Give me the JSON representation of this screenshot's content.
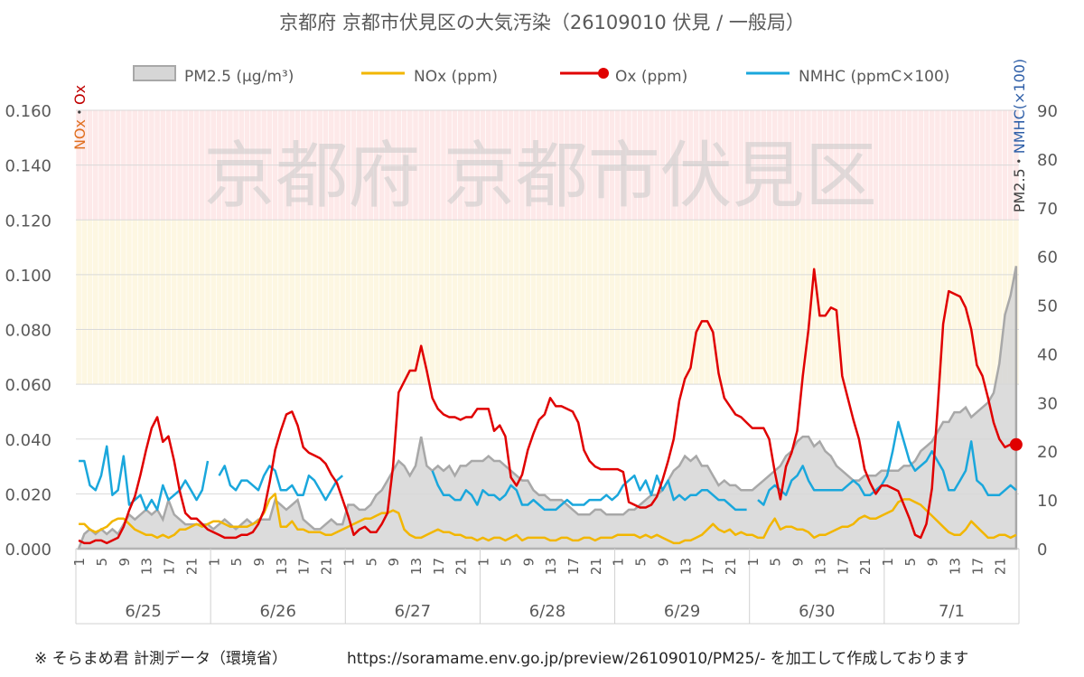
{
  "title": "京都府 京都市伏見区の大気汚染（26109010 伏見 / 一般局）",
  "watermark": "京都府 京都市伏見区",
  "footer_note": "※ そらまめ君 計測データ（環境省）",
  "footer_url": "https://soramame.env.go.jp/preview/26109010/PM25/- を加工して作成しております",
  "left_axis_title": {
    "part1": "NOx",
    "sep": "・",
    "part2": "Ox"
  },
  "right_axis_title": {
    "part1": "PM2.5",
    "sep": "・",
    "part2": "NMHC(×100)"
  },
  "colors": {
    "pm25_fill": "#d6d6d6",
    "pm25_line": "#a8a8a8",
    "nox": "#f2b600",
    "ox": "#e00000",
    "nmhc": "#1aa7dc",
    "band_red": "#fde9e9",
    "band_yellow": "#fdf7e2",
    "nox_label": "#e07020",
    "ox_label": "#c00000",
    "pm_label": "#404040",
    "nmhc_label": "#2f5fa8"
  },
  "chart_data": {
    "type": "line",
    "hours_per_day": 24,
    "x_tick_labels": [
      "1",
      "5",
      "9",
      "13",
      "17",
      "21"
    ],
    "days": [
      "6/25",
      "6/26",
      "6/27",
      "6/28",
      "6/29",
      "6/30",
      "7/1"
    ],
    "y_left": {
      "min": 0,
      "max": 0.16,
      "ticks": [
        "0.000",
        "0.020",
        "0.040",
        "0.060",
        "0.080",
        "0.100",
        "0.120",
        "0.140",
        "0.160"
      ]
    },
    "y_right": {
      "min": 0,
      "max": 90,
      "ticks": [
        "0",
        "10",
        "20",
        "30",
        "40",
        "50",
        "60",
        "70",
        "80",
        "90"
      ]
    },
    "bands": [
      {
        "from": 0.12,
        "to": 0.16,
        "color": "red"
      },
      {
        "from": 0.06,
        "to": 0.12,
        "color": "yellow"
      }
    ],
    "series": [
      {
        "name": "PM2.5 (μg/m³)",
        "axis": "right",
        "style": "area",
        "values": [
          0,
          3,
          4,
          3,
          4,
          3,
          4,
          3,
          5,
          7,
          6,
          7,
          8,
          7,
          8,
          6,
          10,
          7,
          6,
          5,
          5,
          5,
          5,
          5,
          4,
          5,
          6,
          5,
          4,
          5,
          6,
          5,
          6,
          6,
          6,
          10,
          9,
          8,
          9,
          10,
          6,
          5,
          4,
          4,
          5,
          6,
          5,
          5,
          9,
          9,
          8,
          8,
          9,
          11,
          12,
          14,
          16,
          18,
          17,
          15,
          17,
          23,
          17,
          16,
          17,
          16,
          17,
          15,
          17,
          17,
          18,
          18,
          18,
          19,
          18,
          18,
          17,
          16,
          15,
          14,
          14,
          12,
          11,
          11,
          10,
          10,
          10,
          9,
          8,
          7,
          7,
          7,
          8,
          8,
          7,
          7,
          7,
          7,
          8,
          8,
          9,
          10,
          11,
          11,
          12,
          14,
          16,
          17,
          19,
          18,
          19,
          17,
          17,
          15,
          13,
          14,
          13,
          13,
          12,
          12,
          12,
          13,
          14,
          15,
          16,
          17,
          19,
          20,
          22,
          23,
          23,
          21,
          22,
          20,
          19,
          17,
          16,
          15,
          14,
          14,
          15,
          15,
          15,
          16,
          16,
          16,
          16,
          17,
          17,
          18,
          20,
          21,
          22,
          24,
          26,
          26,
          28,
          28,
          29,
          27,
          28,
          29,
          30,
          32,
          38,
          48,
          52,
          58
        ]
      },
      {
        "name": "NOx (ppm)",
        "axis": "left",
        "style": "line",
        "values": [
          0.009,
          0.009,
          0.007,
          0.006,
          0.007,
          0.008,
          0.01,
          0.011,
          0.011,
          0.009,
          0.007,
          0.006,
          0.005,
          0.005,
          0.004,
          0.005,
          0.004,
          0.005,
          0.007,
          0.007,
          0.008,
          0.009,
          0.008,
          0.009,
          0.01,
          0.01,
          0.009,
          0.008,
          0.008,
          0.008,
          0.008,
          0.009,
          0.01,
          0.013,
          0.018,
          0.02,
          0.008,
          0.008,
          0.01,
          0.007,
          0.007,
          0.006,
          0.006,
          0.006,
          0.005,
          0.005,
          0.006,
          0.007,
          0.008,
          0.009,
          0.01,
          0.011,
          0.011,
          0.012,
          0.013,
          0.013,
          0.014,
          0.013,
          0.007,
          0.005,
          0.004,
          0.004,
          0.005,
          0.006,
          0.007,
          0.006,
          0.006,
          0.005,
          0.005,
          0.004,
          0.004,
          0.003,
          0.004,
          0.003,
          0.004,
          0.004,
          0.003,
          0.004,
          0.005,
          0.003,
          0.004,
          0.004,
          0.004,
          0.004,
          0.003,
          0.003,
          0.004,
          0.004,
          0.003,
          0.003,
          0.004,
          0.004,
          0.003,
          0.004,
          0.004,
          0.004,
          0.005,
          0.005,
          0.005,
          0.005,
          0.004,
          0.005,
          0.004,
          0.005,
          0.004,
          0.003,
          0.002,
          0.002,
          0.003,
          0.003,
          0.004,
          0.005,
          0.007,
          0.009,
          0.007,
          0.006,
          0.007,
          0.005,
          0.006,
          0.005,
          0.005,
          0.004,
          0.004,
          0.008,
          0.011,
          0.007,
          0.008,
          0.008,
          0.007,
          0.007,
          0.006,
          0.004,
          0.005,
          0.005,
          0.006,
          0.007,
          0.008,
          0.008,
          0.009,
          0.011,
          0.012,
          0.011,
          0.011,
          0.012,
          0.013,
          0.014,
          0.017,
          0.018,
          0.018,
          0.017,
          0.016,
          0.014,
          0.012,
          0.01,
          0.008,
          0.006,
          0.005,
          0.005,
          0.007,
          0.01,
          0.008,
          0.006,
          0.004,
          0.004,
          0.005,
          0.005,
          0.004,
          0.005
        ]
      },
      {
        "name": "Ox (ppm)",
        "axis": "left",
        "style": "line-marker-last",
        "values": [
          0.003,
          0.002,
          0.002,
          0.003,
          0.003,
          0.002,
          0.003,
          0.004,
          0.008,
          0.014,
          0.019,
          0.027,
          0.036,
          0.044,
          0.048,
          0.039,
          0.041,
          0.032,
          0.021,
          0.013,
          0.011,
          0.011,
          0.009,
          0.007,
          0.006,
          0.005,
          0.004,
          0.004,
          0.004,
          0.005,
          0.005,
          0.006,
          0.009,
          0.014,
          0.024,
          0.036,
          0.043,
          0.049,
          0.05,
          0.045,
          0.037,
          0.035,
          0.034,
          0.033,
          0.031,
          0.027,
          0.024,
          0.018,
          0.012,
          0.005,
          0.007,
          0.008,
          0.006,
          0.006,
          0.009,
          0.013,
          0.03,
          0.057,
          0.061,
          0.065,
          0.065,
          0.074,
          0.065,
          0.055,
          0.051,
          0.049,
          0.048,
          0.048,
          0.047,
          0.048,
          0.048,
          0.051,
          0.051,
          0.051,
          0.043,
          0.045,
          0.041,
          0.026,
          0.023,
          0.027,
          0.036,
          0.042,
          0.047,
          0.049,
          0.055,
          0.052,
          0.052,
          0.051,
          0.05,
          0.046,
          0.036,
          0.032,
          0.03,
          0.029,
          0.029,
          0.029,
          0.029,
          0.028,
          0.017,
          0.016,
          0.015,
          0.015,
          0.016,
          0.019,
          0.025,
          0.032,
          0.04,
          0.054,
          0.062,
          0.066,
          0.079,
          0.083,
          0.083,
          0.079,
          0.064,
          0.055,
          0.052,
          0.049,
          0.048,
          0.046,
          0.044,
          0.044,
          0.044,
          0.04,
          0.028,
          0.018,
          0.03,
          0.035,
          0.043,
          0.063,
          0.08,
          0.102,
          0.085,
          0.085,
          0.088,
          0.087,
          0.063,
          0.055,
          0.047,
          0.04,
          0.029,
          0.024,
          0.02,
          0.023,
          0.023,
          0.022,
          0.021,
          0.016,
          0.011,
          0.005,
          0.004,
          0.009,
          0.022,
          0.051,
          0.082,
          0.094,
          0.093,
          0.092,
          0.088,
          0.08,
          0.067,
          0.063,
          0.055,
          0.046,
          0.04,
          0.037,
          0.038,
          0.038
        ]
      },
      {
        "name": "NMHC (ppmC×100)",
        "axis": "right",
        "style": "line",
        "values": [
          18,
          18,
          13,
          12,
          15,
          21,
          11,
          12,
          19,
          9,
          10,
          11,
          8,
          10,
          8,
          13,
          10,
          11,
          12,
          14,
          12,
          10,
          12,
          18,
          null,
          15,
          17,
          13,
          12,
          14,
          14,
          13,
          12,
          15,
          17,
          16,
          12,
          12,
          13,
          11,
          11,
          15,
          14,
          12,
          10,
          12,
          14,
          15,
          null,
          null,
          null,
          null,
          null,
          null,
          null,
          null,
          null,
          null,
          null,
          null,
          11,
          null,
          null,
          16,
          13,
          11,
          11,
          10,
          10,
          12,
          11,
          9,
          12,
          11,
          11,
          10,
          11,
          13,
          12,
          9,
          9,
          10,
          9,
          8,
          8,
          8,
          9,
          10,
          9,
          9,
          9,
          10,
          10,
          10,
          11,
          10,
          11,
          13,
          14,
          15,
          12,
          14,
          11,
          15,
          12,
          14,
          10,
          11,
          10,
          11,
          11,
          12,
          12,
          11,
          10,
          10,
          9,
          8,
          8,
          8,
          null,
          10,
          9,
          12,
          13,
          12,
          11,
          14,
          15,
          17,
          14,
          12,
          12,
          12,
          12,
          12,
          12,
          13,
          14,
          13,
          11,
          11,
          12,
          13,
          15,
          20,
          26,
          22,
          18,
          16,
          17,
          18,
          20,
          18,
          16,
          12,
          12,
          14,
          16,
          22,
          14,
          13,
          11,
          11,
          11,
          12,
          13,
          12
        ]
      }
    ]
  }
}
